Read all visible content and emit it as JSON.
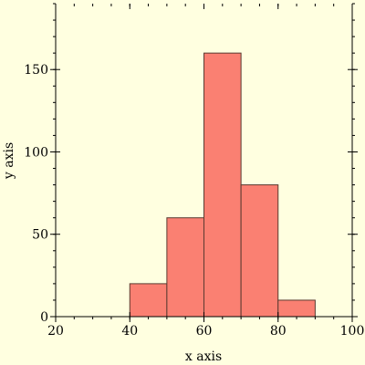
{
  "chart_data": {
    "type": "bar",
    "bins": [
      [
        40,
        50
      ],
      [
        50,
        60
      ],
      [
        60,
        70
      ],
      [
        70,
        80
      ],
      [
        80,
        90
      ]
    ],
    "values": [
      20,
      60,
      160,
      80,
      10
    ],
    "xlabel": "x axis",
    "ylabel": "y axis",
    "xlim": [
      20,
      100
    ],
    "ylim": [
      0,
      190
    ],
    "xticks": [
      20,
      40,
      60,
      80,
      100
    ],
    "yticks": [
      0,
      50,
      100,
      150
    ],
    "grid": false,
    "colors": {
      "bar_fill": "#fa8072",
      "bar_edge": "#5a3a30",
      "background": "#ffffe0",
      "axis": "#000000"
    }
  }
}
